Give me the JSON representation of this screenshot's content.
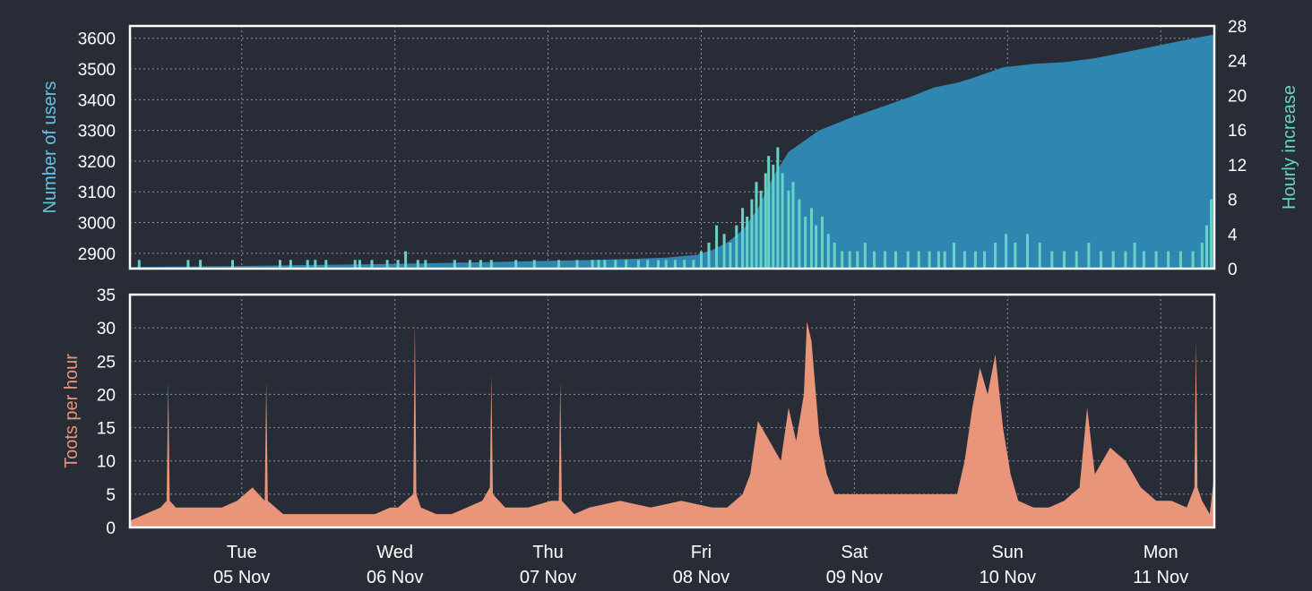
{
  "colors": {
    "background": "#282c36",
    "users_fill": "#2e86b1",
    "users_label": "#67c2e0",
    "hourly_fill": "#67d3c7",
    "hourly_label": "#67d3c7",
    "toots_fill": "#e8957a",
    "toots_label": "#e8957a",
    "grid": "#8d929c",
    "frame": "#ffffff"
  },
  "chart_data": [
    {
      "type": "area",
      "ylabel": "Number of users",
      "ylabel_right": "Hourly increase",
      "xlim": [
        0,
        7.08
      ],
      "ylim": [
        2850,
        3640
      ],
      "ylim_right": [
        0,
        28
      ],
      "yticks": [
        2900,
        3000,
        3100,
        3200,
        3300,
        3400,
        3500,
        3600
      ],
      "yticks_right": [
        0,
        4,
        8,
        12,
        16,
        20,
        24,
        28
      ],
      "grid": true,
      "series": [
        {
          "axis": "left",
          "type": "area",
          "x": [
            0,
            0.3,
            0.6,
            0.9,
            1.2,
            1.5,
            1.8,
            2.1,
            2.4,
            2.7,
            3.0,
            3.3,
            3.5,
            3.7,
            3.8,
            3.9,
            4.0,
            4.1,
            4.2,
            4.3,
            4.5,
            4.7,
            4.9,
            5.1,
            5.25,
            5.4,
            5.5,
            5.7,
            5.9,
            6.1,
            6.3,
            6.5,
            6.7,
            6.9,
            7.0,
            7.08
          ],
          "values": [
            2855,
            2857,
            2858,
            2860,
            2862,
            2864,
            2866,
            2869,
            2872,
            2875,
            2878,
            2882,
            2886,
            2895,
            2910,
            2935,
            2975,
            3045,
            3150,
            3230,
            3300,
            3340,
            3375,
            3410,
            3440,
            3455,
            3470,
            3505,
            3517,
            3522,
            3535,
            3555,
            3575,
            3595,
            3605,
            3612
          ]
        },
        {
          "axis": "right",
          "type": "bar",
          "x": [
            0.06,
            0.38,
            0.46,
            0.67,
            0.98,
            1.05,
            1.16,
            1.21,
            1.28,
            1.47,
            1.5,
            1.58,
            1.68,
            1.75,
            1.8,
            1.88,
            1.93,
            2.12,
            2.22,
            2.29,
            2.36,
            2.52,
            2.64,
            2.8,
            2.92,
            3.02,
            3.06,
            3.1,
            3.17,
            3.24,
            3.32,
            3.38,
            3.45,
            3.5,
            3.56,
            3.62,
            3.68,
            3.73,
            3.78,
            3.83,
            3.88,
            3.92,
            3.96,
            4.0,
            4.03,
            4.06,
            4.09,
            4.12,
            4.15,
            4.17,
            4.2,
            4.23,
            4.26,
            4.3,
            4.33,
            4.37,
            4.41,
            4.45,
            4.48,
            4.52,
            4.56,
            4.6,
            4.65,
            4.7,
            4.75,
            4.8,
            4.86,
            4.93,
            5.0,
            5.08,
            5.15,
            5.22,
            5.28,
            5.32,
            5.38,
            5.45,
            5.52,
            5.58,
            5.65,
            5.72,
            5.78,
            5.86,
            5.94,
            6.02,
            6.1,
            6.18,
            6.26,
            6.34,
            6.42,
            6.5,
            6.56,
            6.62,
            6.7,
            6.78,
            6.86,
            6.94,
            7.0,
            7.03,
            7.06
          ],
          "values": [
            1,
            1,
            1,
            1,
            1,
            1,
            1,
            1,
            1,
            1,
            1,
            1,
            1,
            1,
            2,
            1,
            1,
            1,
            1,
            1,
            1,
            1,
            1,
            1,
            1,
            1,
            1,
            1,
            1,
            1,
            1,
            1,
            1,
            1,
            1,
            1,
            1,
            2,
            3,
            5,
            4,
            3,
            5,
            7,
            6,
            8,
            10,
            9,
            11,
            13,
            12,
            14,
            11,
            9,
            10,
            8,
            6,
            7,
            5,
            6,
            4,
            3,
            2,
            2,
            2,
            3,
            2,
            2,
            2,
            2,
            2,
            2,
            2,
            2,
            3,
            2,
            2,
            2,
            3,
            4,
            3,
            4,
            3,
            2,
            2,
            2,
            3,
            2,
            2,
            2,
            3,
            2,
            2,
            2,
            2,
            2,
            3,
            5,
            8
          ]
        }
      ]
    },
    {
      "type": "area",
      "ylabel": "Toots per hour",
      "xlim": [
        0,
        7.08
      ],
      "ylim": [
        0,
        35
      ],
      "yticks": [
        0,
        5,
        10,
        15,
        20,
        25,
        30,
        35
      ],
      "x_tick_days": [
        "Tue",
        "Wed",
        "Thu",
        "Fri",
        "Sat",
        "Sun",
        "Mon"
      ],
      "x_tick_dates": [
        "05 Nov",
        "06 Nov",
        "07 Nov",
        "08 Nov",
        "09 Nov",
        "10 Nov",
        "11 Nov"
      ],
      "x_tick_positions": [
        0.73,
        1.73,
        2.73,
        3.73,
        4.73,
        5.73,
        6.73
      ],
      "grid": true,
      "series": [
        {
          "type": "area",
          "x": [
            0,
            0.1,
            0.2,
            0.24,
            0.25,
            0.26,
            0.3,
            0.4,
            0.5,
            0.6,
            0.7,
            0.8,
            0.88,
            0.89,
            0.9,
            0.95,
            1.0,
            1.05,
            1.2,
            1.3,
            1.4,
            1.5,
            1.6,
            1.7,
            1.75,
            1.8,
            1.85,
            1.86,
            1.87,
            1.9,
            2.0,
            2.1,
            2.2,
            2.3,
            2.35,
            2.36,
            2.37,
            2.45,
            2.6,
            2.75,
            2.8,
            2.81,
            2.82,
            2.9,
            3.0,
            3.2,
            3.4,
            3.6,
            3.8,
            3.9,
            4.0,
            4.05,
            4.1,
            4.15,
            4.2,
            4.25,
            4.3,
            4.35,
            4.4,
            4.42,
            4.45,
            4.5,
            4.55,
            4.6,
            4.7,
            4.8,
            5.0,
            5.2,
            5.4,
            5.45,
            5.5,
            5.55,
            5.6,
            5.65,
            5.7,
            5.75,
            5.8,
            5.9,
            6.0,
            6.1,
            6.2,
            6.25,
            6.3,
            6.4,
            6.5,
            6.6,
            6.7,
            6.8,
            6.9,
            6.95,
            6.96,
            6.97,
            7.0,
            7.05,
            7.08
          ],
          "values": [
            1,
            2,
            3,
            4,
            22,
            4,
            3,
            3,
            3,
            3,
            4,
            6,
            4,
            22,
            4,
            3,
            2,
            2,
            2,
            2,
            2,
            2,
            2,
            3,
            3,
            4,
            5,
            31,
            5,
            3,
            2,
            2,
            3,
            4,
            6,
            23,
            5,
            3,
            3,
            4,
            4,
            22,
            4,
            2,
            3,
            4,
            3,
            4,
            3,
            3,
            5,
            8,
            16,
            14,
            12,
            10,
            18,
            13,
            20,
            31,
            28,
            14,
            8,
            5,
            5,
            5,
            5,
            5,
            5,
            10,
            18,
            24,
            20,
            26,
            15,
            8,
            4,
            3,
            3,
            4,
            6,
            18,
            8,
            12,
            10,
            6,
            4,
            4,
            3,
            6,
            28,
            6,
            4,
            2,
            8
          ]
        }
      ]
    }
  ]
}
